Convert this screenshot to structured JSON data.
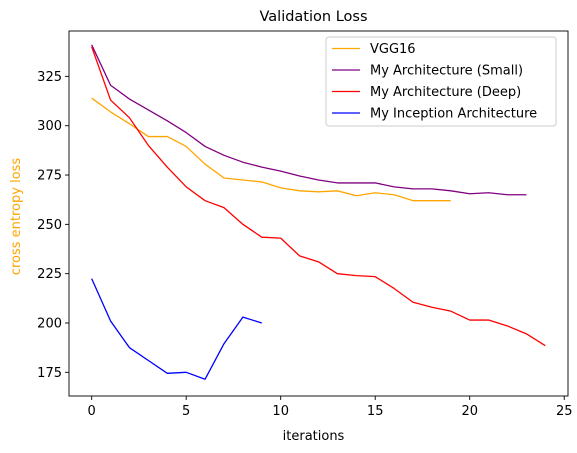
{
  "chart_data": {
    "type": "line",
    "title": "Validation Loss",
    "xlabel": "iterations",
    "ylabel": "cross entropy loss",
    "ylabel_color": "#ffa500",
    "xlim": [
      -1.2,
      25.2
    ],
    "ylim": [
      163,
      348
    ],
    "xticks": [
      0,
      5,
      10,
      15,
      20,
      25
    ],
    "yticks": [
      175,
      200,
      225,
      250,
      275,
      300,
      325
    ],
    "grid": false,
    "legend_position": "upper-right",
    "series": [
      {
        "name": "VGG16",
        "color": "#ffa500",
        "x": [
          0,
          1,
          2,
          3,
          4,
          5,
          6,
          7,
          8,
          9,
          10,
          11,
          12,
          13,
          14,
          15,
          16,
          17,
          18,
          19
        ],
        "y": [
          314,
          307,
          301,
          294.5,
          294.5,
          289.5,
          280.5,
          273.5,
          272.5,
          271.5,
          268.5,
          267,
          266.5,
          267,
          264.5,
          266,
          265,
          262,
          262,
          262
        ]
      },
      {
        "name": "My Architecture (Small)",
        "color": "#800080",
        "x": [
          0,
          1,
          2,
          3,
          4,
          5,
          6,
          7,
          8,
          9,
          10,
          11,
          12,
          13,
          14,
          15,
          16,
          17,
          18,
          19,
          20,
          21,
          22,
          23
        ],
        "y": [
          341,
          320.5,
          313.5,
          308,
          302.5,
          296.5,
          289.5,
          285,
          281.5,
          279,
          277,
          274.5,
          272.5,
          271,
          271,
          271,
          269,
          268,
          268,
          267,
          265.5,
          266,
          265,
          265
        ]
      },
      {
        "name": "My Architecture (Deep)",
        "color": "#ff0000",
        "x": [
          0,
          1,
          2,
          3,
          4,
          5,
          6,
          7,
          8,
          9,
          10,
          11,
          12,
          13,
          14,
          15,
          16,
          17,
          18,
          19,
          20,
          21,
          22,
          23,
          24
        ],
        "y": [
          340,
          313,
          304,
          290,
          279,
          269,
          262,
          258.5,
          250,
          243.5,
          243,
          234,
          231,
          225,
          224,
          223.5,
          217.5,
          210.5,
          208,
          206,
          201.5,
          201.5,
          198.5,
          194.5,
          188.5
        ]
      },
      {
        "name": "My Inception Architecture",
        "color": "#0000ff",
        "x": [
          0,
          1,
          2,
          3,
          4,
          5,
          6,
          7,
          8,
          9
        ],
        "y": [
          222.5,
          201,
          187.5,
          181,
          174.5,
          175,
          171.5,
          189.5,
          203,
          200
        ]
      }
    ]
  }
}
